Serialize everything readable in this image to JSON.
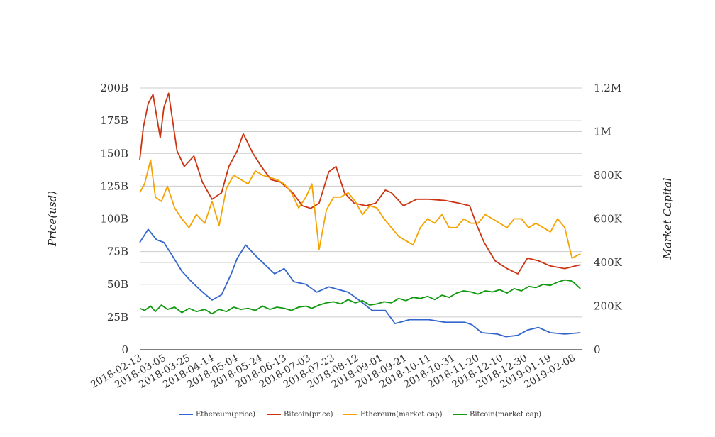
{
  "chart_data": {
    "type": "line",
    "title": "",
    "ylabel_left": "Price(usd)",
    "ylabel_right": "Market Capital",
    "grid": true,
    "legend_position": "bottom",
    "x_ticks": [
      "2018-02-13",
      "2018-03-05",
      "2018-03-25",
      "2018-04-14",
      "2018-05-04",
      "2018-05-24",
      "2018-06-13",
      "2018-07-03",
      "2018-07-23",
      "2018-08-12",
      "2018-09-01",
      "2018-09-21",
      "2018-10-11",
      "2018-10-31",
      "2018-11-20",
      "2018-12-10",
      "2018-12-30",
      "2019-01-19",
      "2019-02-08"
    ],
    "x_range": [
      "2018-02-13",
      "2019-02-15"
    ],
    "left_axis": {
      "min": 0,
      "max": 200000000000,
      "ticks": [
        0,
        25000000000,
        50000000000,
        75000000000,
        100000000000,
        125000000000,
        150000000000,
        175000000000,
        200000000000
      ],
      "tick_labels": [
        "0",
        "25B",
        "50B",
        "75B",
        "100B",
        "125B",
        "150B",
        "175B",
        "200B"
      ]
    },
    "right_axis": {
      "min": 0,
      "max": 1200000,
      "ticks": [
        0,
        200000,
        400000,
        600000,
        800000,
        1000000,
        1200000
      ],
      "tick_labels": [
        "0",
        "200K",
        "400K",
        "600K",
        "800K",
        "1M",
        "1.2M"
      ]
    },
    "series": [
      {
        "name": "Ethereum(price)",
        "axis": "left",
        "color": "#3366cc",
        "x": [
          "2018-02-13",
          "2018-02-20",
          "2018-02-27",
          "2018-03-05",
          "2018-03-12",
          "2018-03-20",
          "2018-03-28",
          "2018-04-05",
          "2018-04-14",
          "2018-04-22",
          "2018-04-30",
          "2018-05-05",
          "2018-05-12",
          "2018-05-20",
          "2018-05-28",
          "2018-06-05",
          "2018-06-13",
          "2018-06-21",
          "2018-07-01",
          "2018-07-10",
          "2018-07-20",
          "2018-07-28",
          "2018-08-05",
          "2018-08-14",
          "2018-08-25",
          "2018-09-05",
          "2018-09-13",
          "2018-09-25",
          "2018-10-11",
          "2018-10-25",
          "2018-11-10",
          "2018-11-16",
          "2018-11-24",
          "2018-12-07",
          "2018-12-14",
          "2018-12-24",
          "2019-01-01",
          "2019-01-10",
          "2019-01-20",
          "2019-02-01",
          "2019-02-14"
        ],
        "values": [
          82000000000,
          92000000000,
          84000000000,
          82000000000,
          72000000000,
          60000000000,
          52000000000,
          45000000000,
          38000000000,
          42000000000,
          58000000000,
          70000000000,
          80000000000,
          72000000000,
          65000000000,
          58000000000,
          62000000000,
          52000000000,
          50000000000,
          44000000000,
          48000000000,
          46000000000,
          44000000000,
          38000000000,
          30000000000,
          30000000000,
          20000000000,
          23000000000,
          23000000000,
          21000000000,
          21000000000,
          19000000000,
          13000000000,
          12000000000,
          10000000000,
          11000000000,
          15000000000,
          17000000000,
          13000000000,
          12000000000,
          13000000000
        ]
      },
      {
        "name": "Bitcoin(price)",
        "axis": "left",
        "color": "#cc3311",
        "x": [
          "2018-02-13",
          "2018-02-16",
          "2018-02-20",
          "2018-02-24",
          "2018-03-02",
          "2018-03-05",
          "2018-03-09",
          "2018-03-16",
          "2018-03-22",
          "2018-03-30",
          "2018-04-06",
          "2018-04-14",
          "2018-04-22",
          "2018-04-28",
          "2018-05-05",
          "2018-05-10",
          "2018-05-18",
          "2018-05-25",
          "2018-06-02",
          "2018-06-10",
          "2018-06-20",
          "2018-06-28",
          "2018-07-05",
          "2018-07-12",
          "2018-07-20",
          "2018-07-26",
          "2018-08-02",
          "2018-08-10",
          "2018-08-20",
          "2018-08-28",
          "2018-09-05",
          "2018-09-10",
          "2018-09-20",
          "2018-10-01",
          "2018-10-11",
          "2018-10-25",
          "2018-11-05",
          "2018-11-14",
          "2018-11-20",
          "2018-11-26",
          "2018-12-05",
          "2018-12-15",
          "2018-12-24",
          "2019-01-01",
          "2019-01-10",
          "2019-01-20",
          "2019-02-01",
          "2019-02-14"
        ],
        "values": [
          145000000000,
          170000000000,
          188000000000,
          195000000000,
          162000000000,
          185000000000,
          196000000000,
          152000000000,
          140000000000,
          148000000000,
          128000000000,
          115000000000,
          120000000000,
          140000000000,
          152000000000,
          165000000000,
          150000000000,
          140000000000,
          130000000000,
          128000000000,
          120000000000,
          110000000000,
          108000000000,
          112000000000,
          136000000000,
          140000000000,
          120000000000,
          112000000000,
          110000000000,
          112000000000,
          122000000000,
          120000000000,
          110000000000,
          115000000000,
          115000000000,
          114000000000,
          112000000000,
          110000000000,
          95000000000,
          82000000000,
          68000000000,
          62000000000,
          58000000000,
          70000000000,
          68000000000,
          64000000000,
          62000000000,
          65000000000
        ]
      },
      {
        "name": "Ethereum(market cap)",
        "axis": "right",
        "color": "#f5a300",
        "x": [
          "2018-02-13",
          "2018-02-17",
          "2018-02-22",
          "2018-02-26",
          "2018-03-03",
          "2018-03-08",
          "2018-03-14",
          "2018-03-20",
          "2018-03-26",
          "2018-04-01",
          "2018-04-08",
          "2018-04-14",
          "2018-04-20",
          "2018-04-26",
          "2018-05-02",
          "2018-05-08",
          "2018-05-14",
          "2018-05-20",
          "2018-05-26",
          "2018-06-01",
          "2018-06-07",
          "2018-06-13",
          "2018-06-19",
          "2018-06-25",
          "2018-07-01",
          "2018-07-06",
          "2018-07-12",
          "2018-07-18",
          "2018-07-24",
          "2018-07-30",
          "2018-08-05",
          "2018-08-11",
          "2018-08-17",
          "2018-08-23",
          "2018-08-29",
          "2018-09-04",
          "2018-09-10",
          "2018-09-16",
          "2018-09-22",
          "2018-09-28",
          "2018-10-04",
          "2018-10-10",
          "2018-10-16",
          "2018-10-22",
          "2018-10-28",
          "2018-11-03",
          "2018-11-09",
          "2018-11-15",
          "2018-11-21",
          "2018-11-27",
          "2018-12-03",
          "2018-12-09",
          "2018-12-15",
          "2018-12-21",
          "2018-12-27",
          "2019-01-02",
          "2019-01-08",
          "2019-01-14",
          "2019-01-20",
          "2019-01-26",
          "2019-02-01",
          "2019-02-07",
          "2019-02-14"
        ],
        "values": [
          720000,
          760000,
          870000,
          700000,
          680000,
          750000,
          650000,
          600000,
          560000,
          620000,
          580000,
          680000,
          570000,
          740000,
          800000,
          780000,
          760000,
          820000,
          800000,
          790000,
          780000,
          760000,
          720000,
          650000,
          700000,
          760000,
          460000,
          640000,
          700000,
          700000,
          720000,
          680000,
          620000,
          660000,
          650000,
          600000,
          560000,
          520000,
          500000,
          480000,
          560000,
          600000,
          580000,
          620000,
          560000,
          560000,
          600000,
          580000,
          580000,
          620000,
          600000,
          580000,
          560000,
          600000,
          600000,
          560000,
          580000,
          560000,
          540000,
          600000,
          560000,
          420000,
          440000
        ]
      },
      {
        "name": "Bitcoin(market cap)",
        "axis": "right",
        "color": "#119911",
        "x": [
          "2018-02-13",
          "2018-02-17",
          "2018-02-22",
          "2018-02-26",
          "2018-03-03",
          "2018-03-08",
          "2018-03-14",
          "2018-03-20",
          "2018-03-26",
          "2018-04-01",
          "2018-04-08",
          "2018-04-14",
          "2018-04-20",
          "2018-04-26",
          "2018-05-02",
          "2018-05-08",
          "2018-05-14",
          "2018-05-20",
          "2018-05-26",
          "2018-06-01",
          "2018-06-07",
          "2018-06-13",
          "2018-06-19",
          "2018-06-25",
          "2018-07-01",
          "2018-07-06",
          "2018-07-12",
          "2018-07-18",
          "2018-07-24",
          "2018-07-30",
          "2018-08-05",
          "2018-08-11",
          "2018-08-17",
          "2018-08-23",
          "2018-08-29",
          "2018-09-04",
          "2018-09-10",
          "2018-09-16",
          "2018-09-22",
          "2018-09-28",
          "2018-10-04",
          "2018-10-10",
          "2018-10-16",
          "2018-10-22",
          "2018-10-28",
          "2018-11-03",
          "2018-11-09",
          "2018-11-15",
          "2018-11-21",
          "2018-11-27",
          "2018-12-03",
          "2018-12-09",
          "2018-12-15",
          "2018-12-21",
          "2018-12-27",
          "2019-01-02",
          "2019-01-08",
          "2019-01-14",
          "2019-01-20",
          "2019-01-26",
          "2019-02-01",
          "2019-02-07",
          "2019-02-14"
        ],
        "values": [
          190000,
          180000,
          200000,
          175000,
          205000,
          185000,
          195000,
          170000,
          190000,
          175000,
          185000,
          165000,
          185000,
          175000,
          195000,
          185000,
          190000,
          180000,
          200000,
          185000,
          195000,
          190000,
          180000,
          195000,
          200000,
          190000,
          205000,
          215000,
          220000,
          210000,
          230000,
          215000,
          225000,
          205000,
          210000,
          220000,
          215000,
          235000,
          225000,
          240000,
          235000,
          245000,
          230000,
          250000,
          240000,
          260000,
          270000,
          265000,
          255000,
          270000,
          265000,
          275000,
          260000,
          280000,
          270000,
          290000,
          285000,
          300000,
          295000,
          310000,
          320000,
          315000,
          280000
        ]
      }
    ]
  }
}
